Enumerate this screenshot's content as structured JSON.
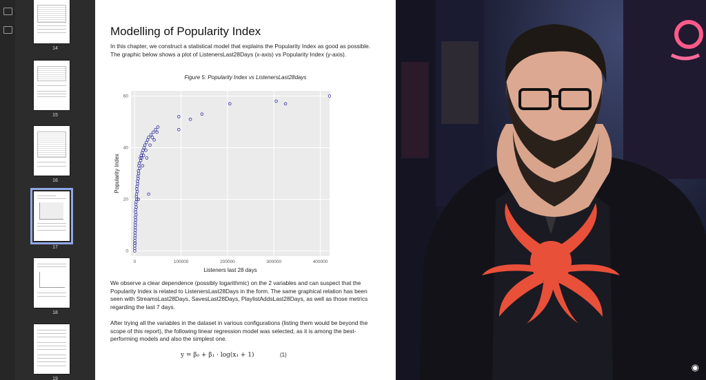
{
  "sidebar": {
    "pages": [
      {
        "label": "14",
        "kind": "table"
      },
      {
        "label": "15",
        "kind": "table"
      },
      {
        "label": "16",
        "kind": "table"
      },
      {
        "label": "17",
        "kind": "chart",
        "selected": true
      },
      {
        "label": "18",
        "kind": "chart"
      },
      {
        "label": "19",
        "kind": "text"
      }
    ]
  },
  "toolbar": {
    "icons": [
      "panel-icon",
      "bookmark-icon"
    ]
  },
  "document": {
    "heading": "Modelling of Popularity Index",
    "intro": "In this chapter, we construct a statistical model that explains the Popularity Index as good as possible. The graphic below shows a plot of ListenersLast28Days (x-axis) vs Popularity Index (y-axis).",
    "figure_caption": "Figure 5: Popularity Index vs ListenersLast28days",
    "observation": "We observe a clear dependence (possibly logarithmic) on the 2 variables and can suspect that the Popularity Index is related to ListenersLast28Days in the form. The same graphical relation has been seen with StreamsLast28Days, SavesLast28Days, PlaylistAddsLast28Days, as well as those metrics regarding the last 7 days.",
    "conclusion": "After trying all the variables in the dataset in various configurations (listing them would be beyond the scope of this report), the following linear regression model was selected, as it is among the best-performing models and also the simplest one.",
    "equation": "y = β₀ + β₁ · log(x₁ + 1)",
    "equation_number": "(1)"
  },
  "chart_data": {
    "type": "scatter",
    "xlabel": "Listeners last 28 days",
    "ylabel": "Popularity Index",
    "x_ticks": [
      "0",
      "100000",
      "200000",
      "300000",
      "400000"
    ],
    "y_ticks": [
      "0",
      "20",
      "40",
      "60"
    ],
    "xlim": [
      -8000,
      420000
    ],
    "ylim": [
      -2,
      62
    ],
    "grid": true,
    "point_color": "#1f1f9a",
    "points": [
      [
        0,
        0
      ],
      [
        0,
        1
      ],
      [
        100,
        2
      ],
      [
        200,
        3
      ],
      [
        300,
        4
      ],
      [
        500,
        5
      ],
      [
        700,
        7
      ],
      [
        1000,
        9
      ],
      [
        1200,
        11
      ],
      [
        1500,
        13
      ],
      [
        1800,
        15
      ],
      [
        2000,
        16
      ],
      [
        2500,
        18
      ],
      [
        3000,
        19
      ],
      [
        3500,
        21
      ],
      [
        4000,
        22
      ],
      [
        4500,
        24
      ],
      [
        5000,
        25
      ],
      [
        6000,
        27
      ],
      [
        7000,
        29
      ],
      [
        8000,
        31
      ],
      [
        9000,
        33
      ],
      [
        10000,
        34
      ],
      [
        12000,
        36
      ],
      [
        14000,
        37
      ],
      [
        16000,
        38
      ],
      [
        18000,
        39
      ],
      [
        20000,
        40
      ],
      [
        25000,
        42
      ],
      [
        30000,
        44
      ],
      [
        35000,
        45
      ],
      [
        40000,
        46
      ],
      [
        45000,
        47
      ],
      [
        50000,
        48
      ],
      [
        95000,
        47
      ],
      [
        95000,
        52
      ],
      [
        120000,
        51
      ],
      [
        145000,
        53
      ],
      [
        205000,
        57
      ],
      [
        305000,
        58
      ],
      [
        325000,
        57
      ],
      [
        420000,
        60
      ],
      [
        8000,
        20
      ],
      [
        30000,
        22
      ],
      [
        600,
        3
      ],
      [
        900,
        6
      ],
      [
        1300,
        8
      ],
      [
        1700,
        10
      ],
      [
        2200,
        12
      ],
      [
        2700,
        14
      ],
      [
        3200,
        17
      ],
      [
        4200,
        20
      ],
      [
        5500,
        23
      ],
      [
        6500,
        26
      ],
      [
        7500,
        28
      ],
      [
        8500,
        30
      ],
      [
        11000,
        32
      ],
      [
        13000,
        35
      ],
      [
        15000,
        36
      ],
      [
        22000,
        41
      ],
      [
        28000,
        43
      ],
      [
        33000,
        41
      ],
      [
        38000,
        44
      ],
      [
        42000,
        43
      ],
      [
        48000,
        46
      ],
      [
        17000,
        33
      ],
      [
        19000,
        37
      ],
      [
        24000,
        39
      ],
      [
        26000,
        36
      ]
    ]
  }
}
